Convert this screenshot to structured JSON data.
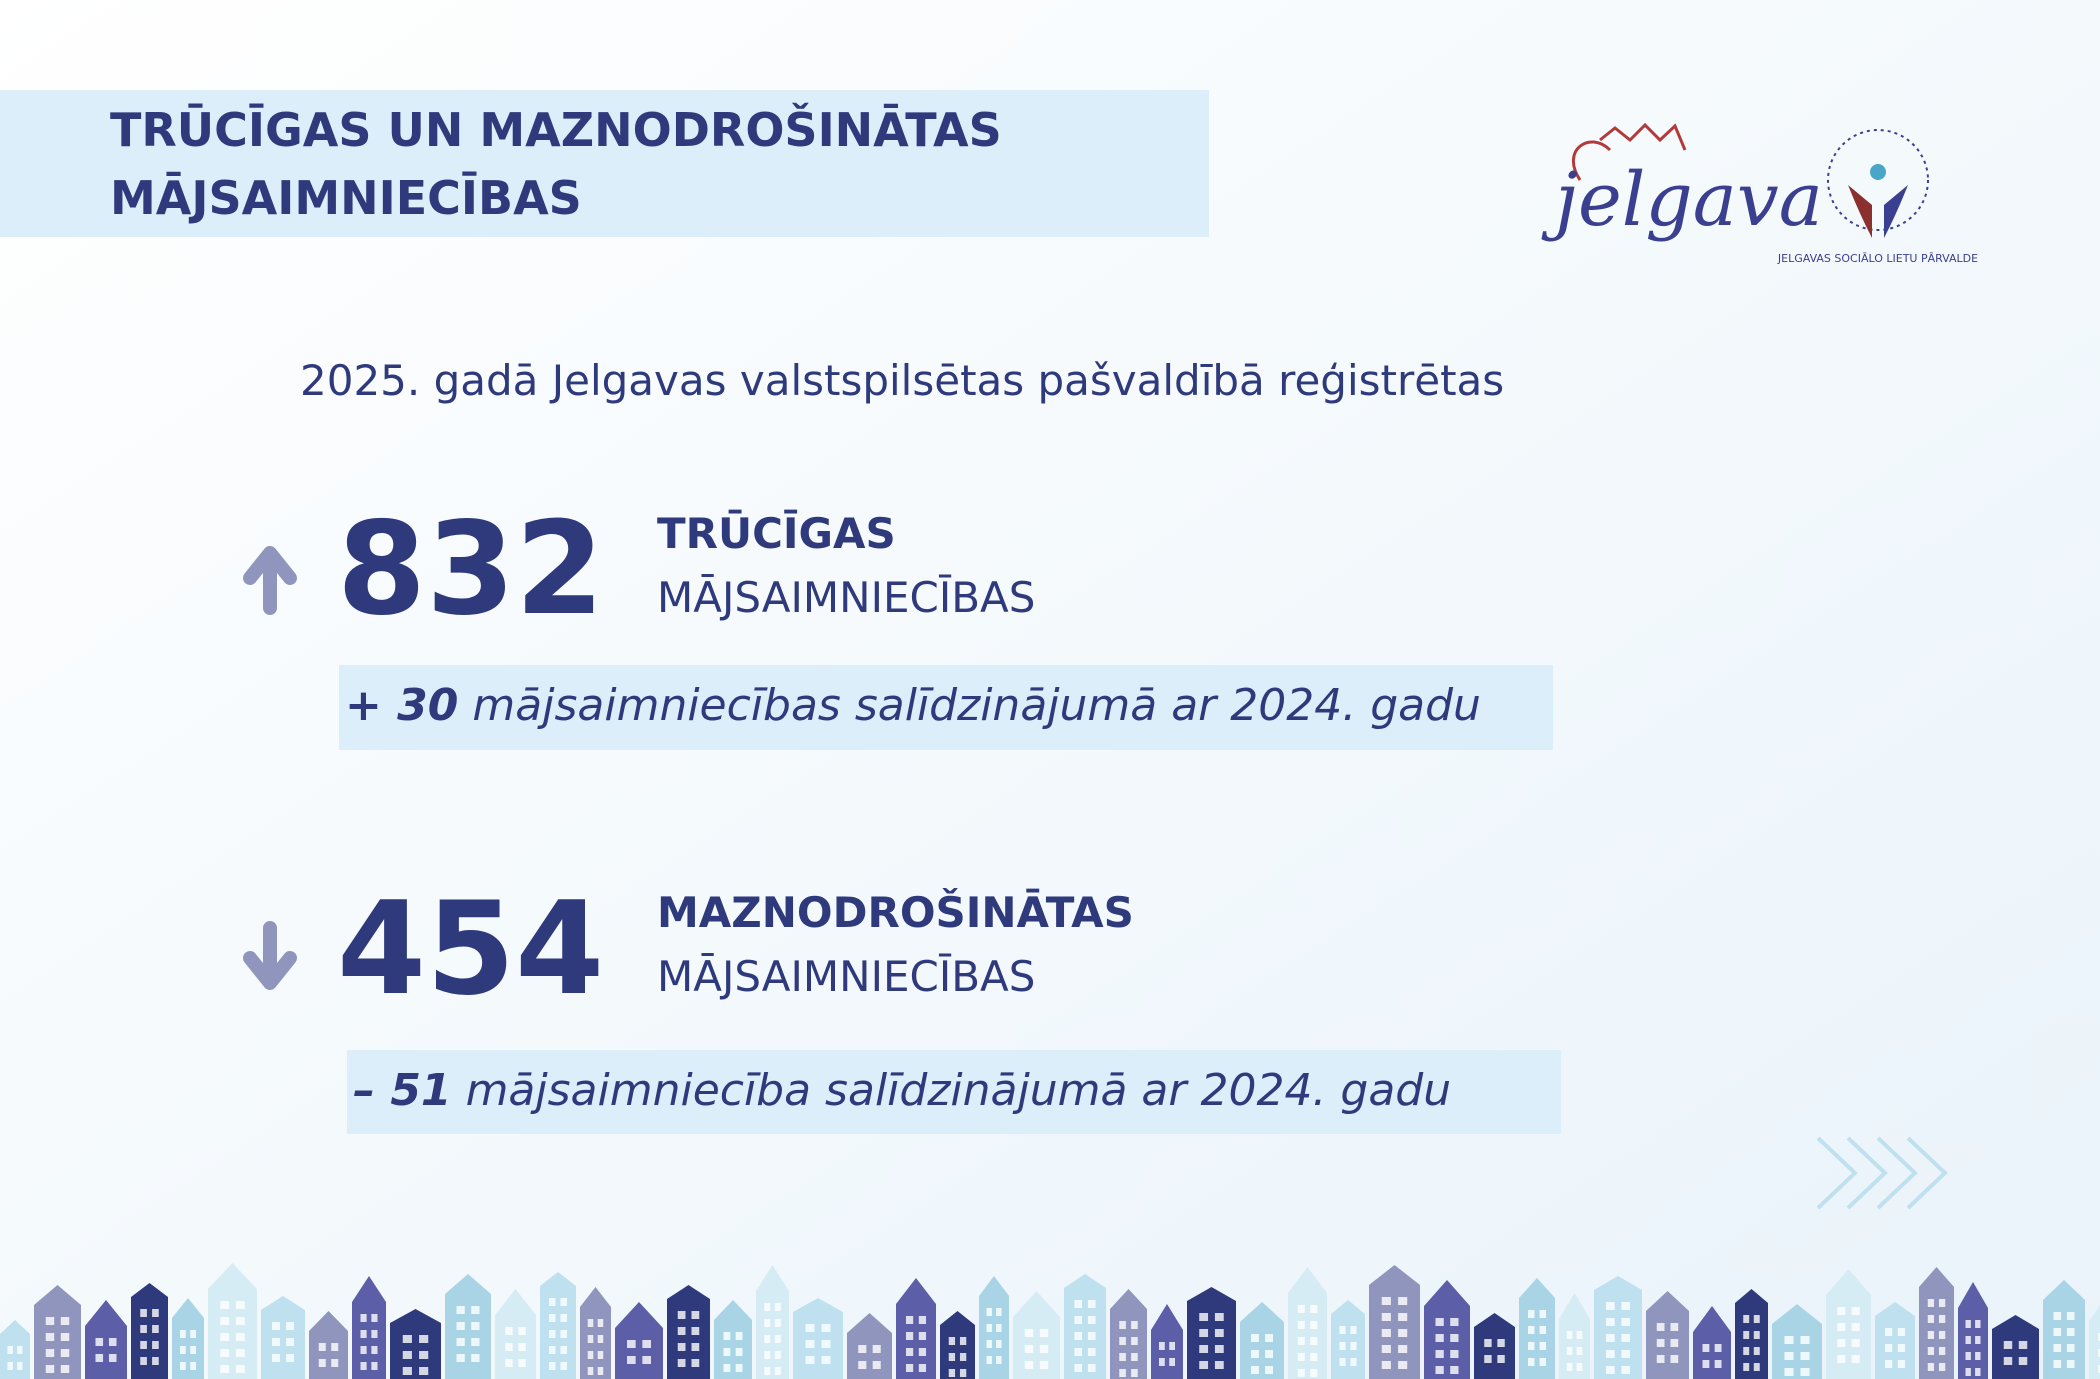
{
  "header": {
    "title_lines": [
      "TRŪCĪGAS UN MAZNODROŠINĀTAS",
      "MĀJSAIMNIECĪBAS"
    ]
  },
  "logos": {
    "city": "jelgava",
    "agency": "JELGAVAS SOCIĀLO LIETU PĀRVALDE"
  },
  "intro": "2025. gadā Jelgavas valstspilsētas pašvaldībā reģistrētas",
  "stats": [
    {
      "value": 832,
      "label_bold": "TRŪCĪGAS",
      "label": "MĀJSAIMNIECĪBAS",
      "change": "+ 30",
      "change_text": "mājsaimniecības salīdzinājumā ar 2024. gadu"
    },
    {
      "value": 454,
      "label_bold": "MAZNODROŠINĀTAS",
      "label": "MĀJSAIMNIECĪBAS",
      "change": "– 51",
      "change_text": "mājsaimniecība salīdzinājumā ar 2024. gadu"
    }
  ]
}
